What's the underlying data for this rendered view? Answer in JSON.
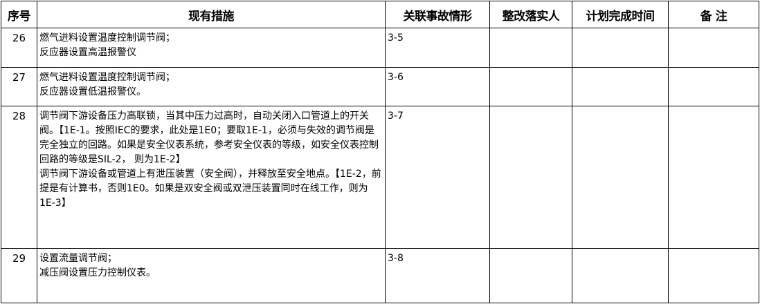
{
  "headers": [
    "序号",
    "现有措施",
    "关联事故情形",
    "整改落实人",
    "计划完成时间",
    "备 注"
  ],
  "rows": [
    {
      "no": "26",
      "measures": [
        "燃气进料设置温度控制调节阀；",
        "反应器设置高温报警仪"
      ],
      "scenario": "3-5",
      "owner": "",
      "deadline": "",
      "remark": ""
    },
    {
      "no": "27",
      "measures": [
        "燃气进料设置温度控制调节阀；",
        "反应器设置低温报警仪。"
      ],
      "scenario": "3-6",
      "owner": "",
      "deadline": "",
      "remark": ""
    },
    {
      "no": "28",
      "measures": [
        "调节阀下游设备压力高联锁，当其中压力过高时，自动关闭入口管道上的开关阀。【1E-1。按照IEC的要求，此处是1E0；要取1E-1，必须与失效的调节阀是完全独立的回路。如果是安全仪表系统，参考安全仪表的等级，如安全仪表控制回路的等级是SIL-2， 则为1E-2】",
        "调节阀下游设备或管道上有泄压装置（安全阀），并释放至安全地点。【1E-2，前提是有计算书，否则1E0。如果是双安全阀或双泄压装置同时在线工作，则为1E-3】"
      ],
      "scenario": "3-7",
      "owner": "",
      "deadline": "",
      "remark": ""
    },
    {
      "no": "29",
      "measures": [
        "设置流量调节阀；",
        "减压阀设置压力控制仪表。"
      ],
      "scenario": "3-8",
      "owner": "",
      "deadline": "",
      "remark": ""
    }
  ]
}
